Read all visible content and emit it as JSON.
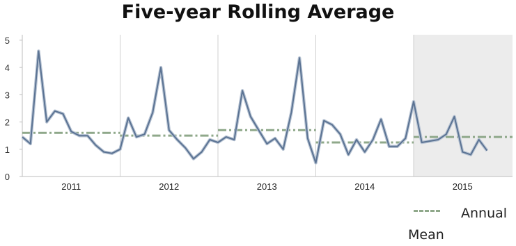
{
  "chart_data": {
    "type": "line",
    "title": "Five-year Rolling Average",
    "xlabel": "",
    "ylabel": "",
    "ylim": [
      0,
      5.2
    ],
    "yticks": [
      "0",
      "1",
      "2",
      "3",
      "4",
      "5"
    ],
    "year_labels": [
      "2011",
      "2012",
      "2013",
      "2014",
      "2015"
    ],
    "months_per_year": 12,
    "highlighted_period": "2015",
    "series": [
      {
        "name": "",
        "color": "#5b7393",
        "values": [
          1.45,
          1.2,
          4.6,
          2.0,
          2.4,
          2.3,
          1.65,
          1.5,
          1.5,
          1.15,
          0.9,
          0.85,
          1.0,
          2.15,
          1.45,
          1.55,
          2.35,
          4.0,
          1.7,
          1.35,
          1.05,
          0.65,
          0.9,
          1.35,
          1.25,
          1.45,
          1.35,
          3.15,
          2.2,
          1.7,
          1.2,
          1.4,
          1.0,
          2.35,
          4.35,
          1.4,
          0.5,
          2.05,
          1.9,
          1.55,
          0.8,
          1.35,
          0.9,
          1.35,
          2.1,
          1.1,
          1.1,
          1.4,
          2.75,
          1.25,
          1.3,
          1.35,
          1.55,
          2.2,
          0.9,
          0.8,
          1.35,
          0.95
        ]
      },
      {
        "name": "Annual Mean",
        "color": "#8fa88a",
        "style": "dash-dot",
        "annual_values": [
          1.6,
          1.5,
          1.7,
          1.25,
          1.45
        ]
      }
    ],
    "legend": {
      "position": "bottom-right",
      "label": "Annual Mean"
    },
    "grid": {
      "horizontal": false,
      "vertical_year_separators": true
    }
  }
}
